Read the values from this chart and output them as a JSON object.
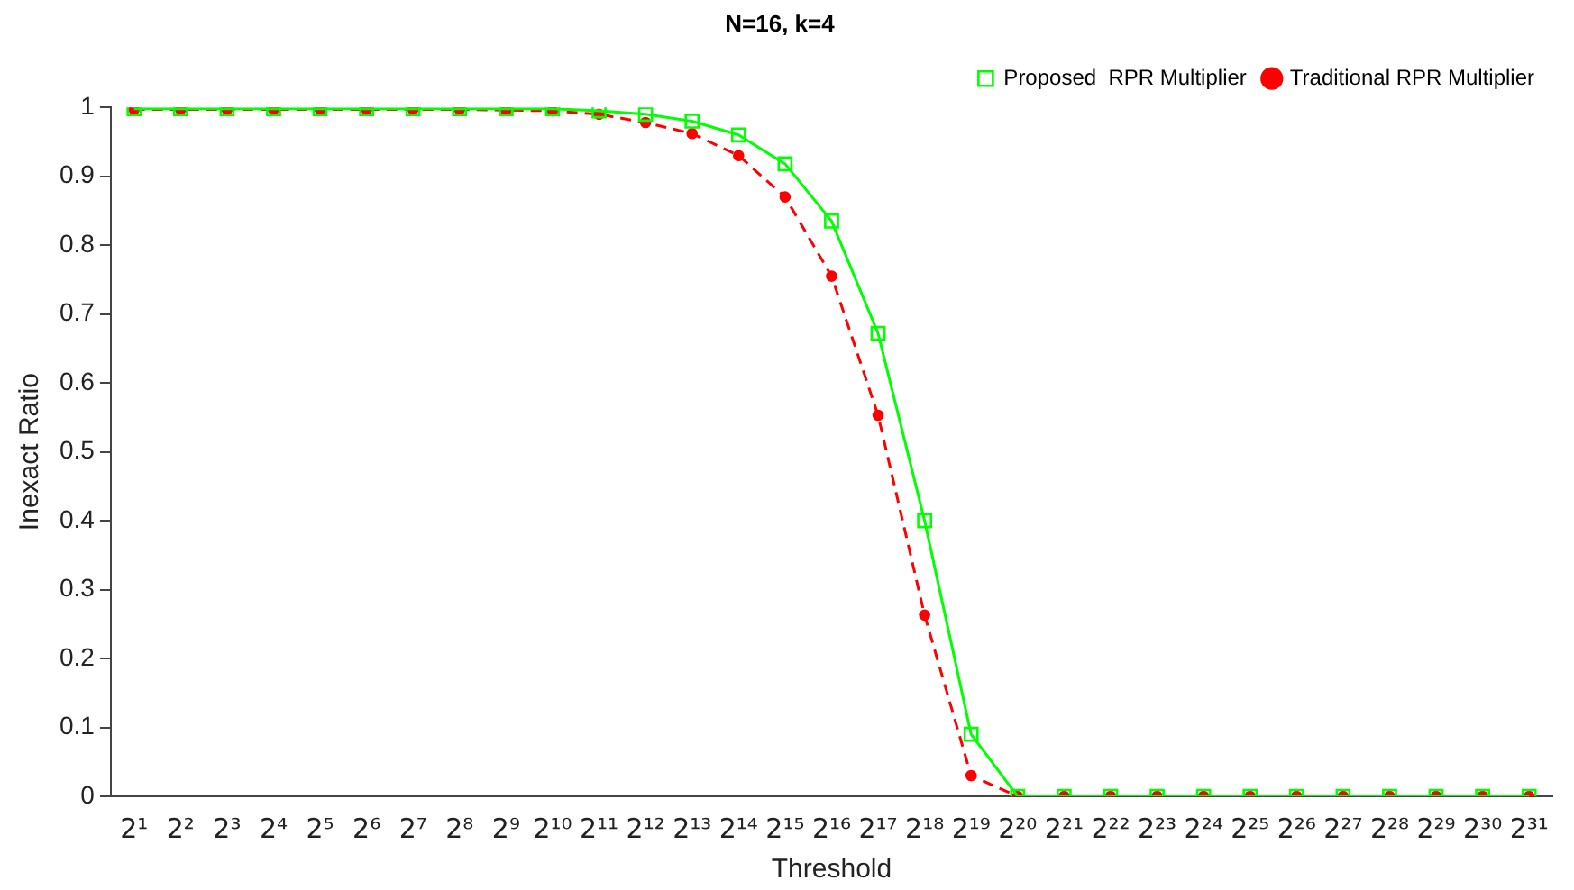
{
  "chart_data": {
    "type": "line",
    "title": "N=16, k=4",
    "xlabel": "Threshold",
    "ylabel": "Inexact Ratio",
    "categories": [
      "2¹",
      "2²",
      "2³",
      "2⁴",
      "2⁵",
      "2⁶",
      "2⁷",
      "2⁸",
      "2⁹",
      "2¹⁰",
      "2¹¹",
      "2¹²",
      "2¹³",
      "2¹⁴",
      "2¹⁵",
      "2¹⁶",
      "2¹⁷",
      "2¹⁸",
      "2¹⁹",
      "2²⁰",
      "2²¹",
      "2²²",
      "2²³",
      "2²⁴",
      "2²⁵",
      "2²⁶",
      "2²⁷",
      "2²⁸",
      "2²⁹",
      "2³⁰",
      "2³¹"
    ],
    "series": [
      {
        "name": "Traditional RPR Multiplier",
        "color": "#ff0000",
        "marker": "circle",
        "line_style": "dashed",
        "values": [
          0.997,
          0.997,
          0.997,
          0.997,
          0.997,
          0.997,
          0.997,
          0.997,
          0.996,
          0.995,
          0.99,
          0.978,
          0.962,
          0.93,
          0.87,
          0.755,
          0.553,
          0.263,
          0.03,
          0,
          0,
          0,
          0,
          0,
          0,
          0,
          0,
          0,
          0,
          0,
          0
        ]
      },
      {
        "name": "Proposed  RPR Multiplier",
        "color": "#00ff00",
        "marker": "square",
        "line_style": "solid",
        "values": [
          0.998,
          0.998,
          0.998,
          0.998,
          0.998,
          0.998,
          0.998,
          0.998,
          0.998,
          0.998,
          0.995,
          0.99,
          0.98,
          0.96,
          0.918,
          0.835,
          0.672,
          0.4,
          0.09,
          0,
          0,
          0,
          0,
          0,
          0,
          0,
          0,
          0,
          0,
          0,
          0
        ]
      }
    ],
    "ylim": [
      0,
      1
    ],
    "yticks": [
      0,
      0.1,
      0.2,
      0.3,
      0.4,
      0.5,
      0.6,
      0.7,
      0.8,
      0.9,
      1
    ],
    "grid": false,
    "legend": "top right"
  }
}
